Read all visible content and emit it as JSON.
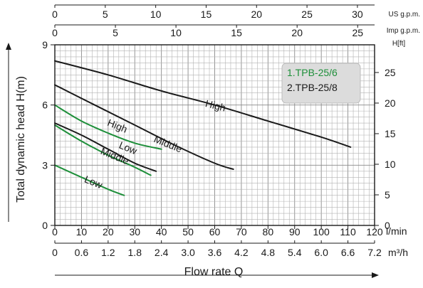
{
  "chart_data": {
    "type": "line",
    "title": "",
    "xlabel": "Flow rate Q",
    "ylabel": "Total dynamic head H(m)",
    "y2label": "H[ft]",
    "x_unit": "l/min",
    "x_alt_unit": "m³/h",
    "top_unit_us": "US g.p.m.",
    "top_unit_imp": "Imp g.p.m.",
    "xlim": [
      0,
      120
    ],
    "ylim": [
      0,
      9
    ],
    "grid": true,
    "x_ticks_lmin": [
      "0",
      "10",
      "20",
      "30",
      "40",
      "50",
      "60",
      "70",
      "80",
      "90",
      "100",
      "110",
      "120"
    ],
    "x_ticks_m3h": [
      "0",
      "0.6",
      "1.2",
      "1.8",
      "2.4",
      "3.0",
      "3.6",
      "4.2",
      "4.8",
      "5.4",
      "6.0",
      "6.6",
      "7.2"
    ],
    "y_ticks_m": [
      "0",
      "3",
      "6",
      "9"
    ],
    "y_ticks_ft": [
      "0",
      "5",
      "10",
      "15",
      "20",
      "25"
    ],
    "top_ticks_us": [
      "0",
      "5",
      "10",
      "15",
      "20",
      "25",
      "30"
    ],
    "top_ticks_imp": [
      "0",
      "5",
      "10",
      "15",
      "20",
      "25"
    ],
    "legend": {
      "position": "top-right",
      "entries": [
        {
          "text": "1.TPB-25/6",
          "color": "#1e8f3a"
        },
        {
          "text": "2.TPB-25/8",
          "color": "#1a1a1a"
        }
      ]
    },
    "series": [
      {
        "model": "1",
        "speed": "High",
        "color": "#1e8f3a",
        "points": [
          [
            0,
            6.0
          ],
          [
            10,
            5.2
          ],
          [
            20,
            4.6
          ],
          [
            30,
            4.1
          ],
          [
            40,
            3.8
          ]
        ]
      },
      {
        "model": "1",
        "speed": "Middle",
        "color": "#1e8f3a",
        "points": [
          [
            0,
            5.0
          ],
          [
            10,
            4.2
          ],
          [
            20,
            3.5
          ],
          [
            30,
            2.9
          ],
          [
            36,
            2.5
          ]
        ]
      },
      {
        "model": "1",
        "speed": "Low",
        "color": "#1e8f3a",
        "points": [
          [
            0,
            3.0
          ],
          [
            10,
            2.4
          ],
          [
            20,
            1.8
          ],
          [
            26,
            1.5
          ]
        ]
      },
      {
        "model": "2",
        "speed": "High",
        "color": "#1a1a1a",
        "points": [
          [
            0,
            8.2
          ],
          [
            20,
            7.5
          ],
          [
            40,
            6.7
          ],
          [
            60,
            6.0
          ],
          [
            80,
            5.2
          ],
          [
            100,
            4.4
          ],
          [
            111,
            3.9
          ]
        ]
      },
      {
        "model": "2",
        "speed": "Middle",
        "color": "#1a1a1a",
        "points": [
          [
            0,
            7.0
          ],
          [
            15,
            6.0
          ],
          [
            30,
            5.0
          ],
          [
            45,
            4.0
          ],
          [
            60,
            3.1
          ],
          [
            67,
            2.8
          ]
        ]
      },
      {
        "model": "2",
        "speed": "Low",
        "color": "#1a1a1a",
        "points": [
          [
            0,
            5.1
          ],
          [
            10,
            4.5
          ],
          [
            20,
            3.8
          ],
          [
            30,
            3.1
          ],
          [
            38,
            2.7
          ]
        ]
      }
    ],
    "curve_labels": [
      {
        "text": "High",
        "x": 60,
        "y": 5.8
      },
      {
        "text": "Middle",
        "x": 42,
        "y": 3.9
      },
      {
        "text": "High",
        "x": 23,
        "y": 4.8
      },
      {
        "text": "Low",
        "x": 27,
        "y": 3.7
      },
      {
        "text": "Middle",
        "x": 22,
        "y": 3.3
      },
      {
        "text": "Low",
        "x": 14,
        "y": 2.0
      }
    ]
  }
}
